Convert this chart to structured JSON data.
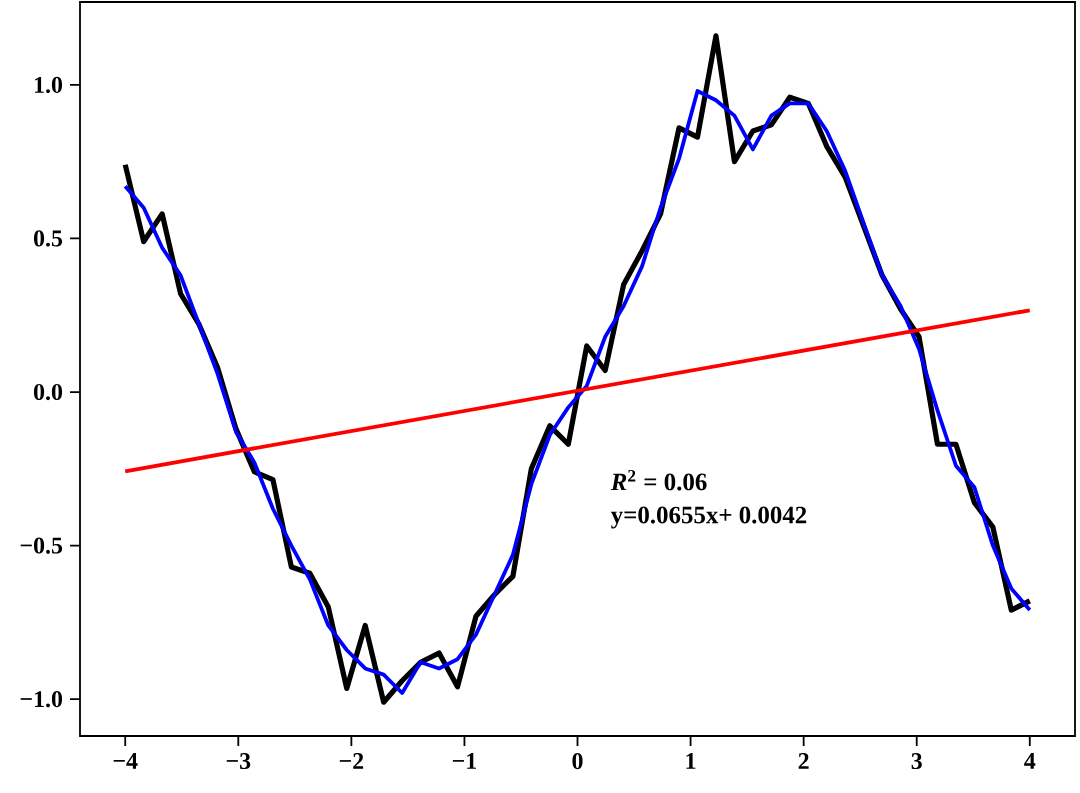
{
  "chart_data": {
    "type": "line",
    "x": [
      -4,
      -3.8367,
      -3.6735,
      -3.5102,
      -3.3469,
      -3.1837,
      -3.0204,
      -2.8571,
      -2.6939,
      -2.5306,
      -2.3673,
      -2.2041,
      -2.0408,
      -1.8776,
      -1.7143,
      -1.551,
      -1.3878,
      -1.2245,
      -1.0612,
      -0.898,
      -0.7347,
      -0.5714,
      -0.4082,
      -0.2449,
      -0.0816,
      0.0816,
      0.2449,
      0.4082,
      0.5714,
      0.7347,
      0.898,
      1.0612,
      1.2245,
      1.3878,
      1.551,
      1.7143,
      1.8776,
      2.0408,
      2.2041,
      2.3673,
      2.5306,
      2.6939,
      2.8571,
      3.0204,
      3.1837,
      3.3469,
      3.5102,
      3.6735,
      3.8367,
      4
    ],
    "series": [
      {
        "color": "#000000",
        "values": [
          0.74,
          0.49,
          0.58,
          0.32,
          0.22,
          0.08,
          -0.12,
          -0.26,
          -0.285,
          -0.57,
          -0.59,
          -0.7,
          -0.965,
          -0.76,
          -1.01,
          -0.94,
          -0.88,
          -0.85,
          -0.96,
          -0.73,
          -0.66,
          -0.6,
          -0.25,
          -0.11,
          -0.17,
          0.15,
          0.07,
          0.35,
          0.46,
          0.58,
          0.86,
          0.83,
          1.16,
          0.75,
          0.85,
          0.87,
          0.96,
          0.94,
          0.8,
          0.7,
          0.54,
          0.38,
          0.27,
          0.18,
          -0.17,
          -0.17,
          -0.36,
          -0.44,
          -0.71,
          -0.68
        ]
      },
      {
        "color": "#0000ff",
        "values": [
          0.67,
          0.6,
          0.47,
          0.38,
          0.22,
          0.06,
          -0.13,
          -0.23,
          -0.38,
          -0.5,
          -0.61,
          -0.76,
          -0.84,
          -0.9,
          -0.92,
          -0.98,
          -0.88,
          -0.9,
          -0.87,
          -0.79,
          -0.66,
          -0.53,
          -0.3,
          -0.14,
          -0.05,
          0.02,
          0.18,
          0.28,
          0.41,
          0.6,
          0.76,
          0.98,
          0.95,
          0.9,
          0.79,
          0.9,
          0.94,
          0.94,
          0.85,
          0.72,
          0.55,
          0.38,
          0.28,
          0.14,
          -0.06,
          -0.24,
          -0.31,
          -0.5,
          -0.64,
          -0.71
        ]
      },
      {
        "color": "#ff0000",
        "x": [
          -4,
          4
        ],
        "values": [
          -0.258,
          0.266
        ]
      }
    ],
    "xlim": [
      -4.4,
      4.4
    ],
    "ylim": [
      -1.12,
      1.27
    ],
    "xticks": [
      {
        "value": -4,
        "label": "−4"
      },
      {
        "value": -3,
        "label": "−3"
      },
      {
        "value": -2,
        "label": "−2"
      },
      {
        "value": -1,
        "label": "−1"
      },
      {
        "value": 0,
        "label": "0"
      },
      {
        "value": 1,
        "label": "1"
      },
      {
        "value": 2,
        "label": "2"
      },
      {
        "value": 3,
        "label": "3"
      },
      {
        "value": 4,
        "label": "4"
      }
    ],
    "yticks": [
      {
        "value": -1,
        "label": "−1.0"
      },
      {
        "value": -0.5,
        "label": "−0.5"
      },
      {
        "value": 0,
        "label": "0.0"
      },
      {
        "value": 0.5,
        "label": "0.5"
      },
      {
        "value": 1,
        "label": "1.0"
      }
    ],
    "annotations": [
      "*R*$^{2}$ = 0.06",
      "y=0.0655x+ 0.0042"
    ]
  }
}
